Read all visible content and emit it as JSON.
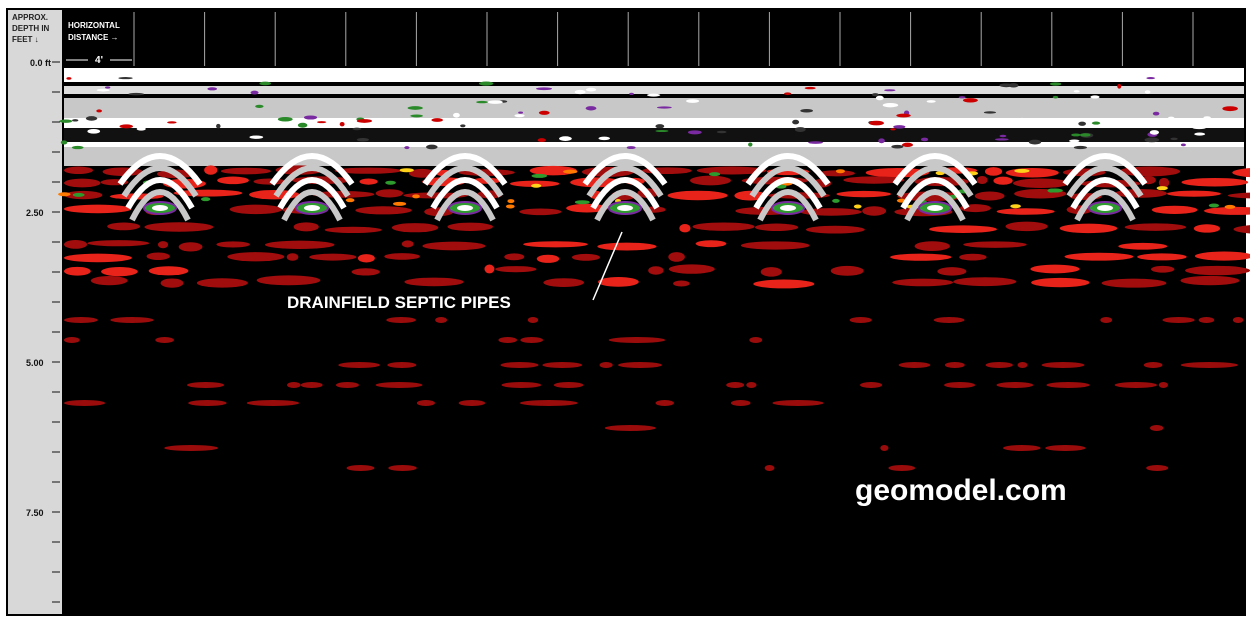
{
  "depth_axis": {
    "title": [
      "APPROX.",
      "DEPTH IN",
      "FEET ↓"
    ],
    "labels": [
      "0.0 ft",
      "2.50",
      "5.00",
      "7.50"
    ]
  },
  "distance_axis": {
    "title": [
      "HORIZONTAL",
      "DISTANCE →"
    ],
    "scale": "4'"
  },
  "annotation": "DRAINFIELD SEPTIC PIPES",
  "watermark": "geomodel.com"
}
